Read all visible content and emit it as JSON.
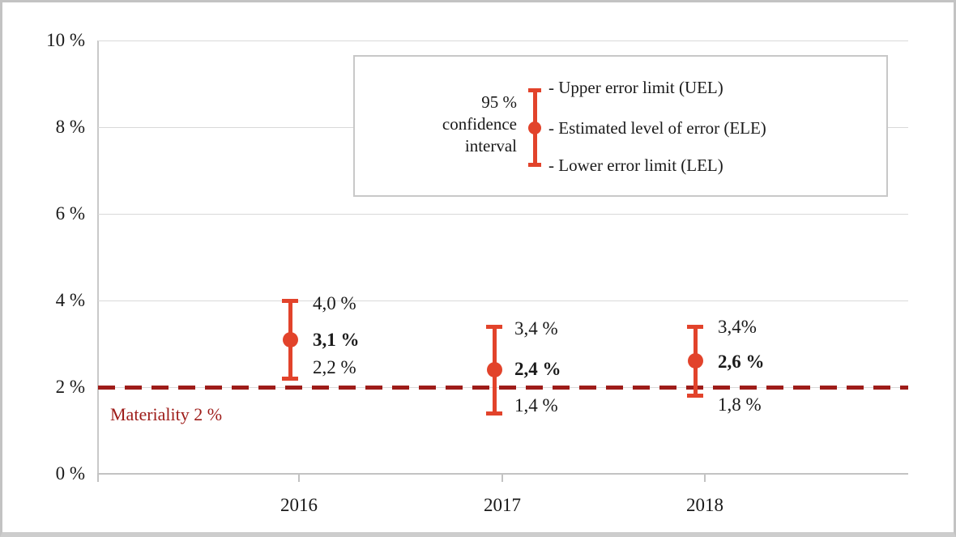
{
  "chart_data": {
    "type": "errorbar",
    "title": "",
    "categories": [
      "2016",
      "2017",
      "2018"
    ],
    "series": [
      {
        "name": "Upper error limit (UEL)",
        "values": [
          4.0,
          3.4,
          3.4
        ],
        "labels": [
          "4,0 %",
          "3,4 %",
          "3,4%"
        ]
      },
      {
        "name": "Estimated level of error (ELE)",
        "values": [
          3.1,
          2.4,
          2.6
        ],
        "labels": [
          "3,1 %",
          "2,4 %",
          "2,6 %"
        ],
        "emphasis": true
      },
      {
        "name": "Lower error limit (LEL)",
        "values": [
          2.2,
          1.4,
          1.8
        ],
        "labels": [
          "2,2 %",
          "1,4 %",
          "1,8 %"
        ]
      }
    ],
    "ylim": [
      0,
      10
    ],
    "ytick_step": 2,
    "yticks": [
      "0 %",
      "2 %",
      "4 %",
      "6 %",
      "8 %",
      "10 %"
    ],
    "grid": true,
    "reference_line": {
      "value": 2,
      "label": "Materiality 2 %"
    },
    "legend": {
      "position": "top-center",
      "caption": [
        "95 %",
        "confidence",
        "interval"
      ],
      "entries": [
        "- Upper error limit (UEL)",
        "- Estimated level of error (ELE)",
        "- Lower error limit (LEL)"
      ]
    },
    "colors": {
      "errorbar": "#e2432b",
      "materiality": "#9e1c19",
      "gridline": "#d9d9d9",
      "axis": "#c3c3c3"
    }
  }
}
